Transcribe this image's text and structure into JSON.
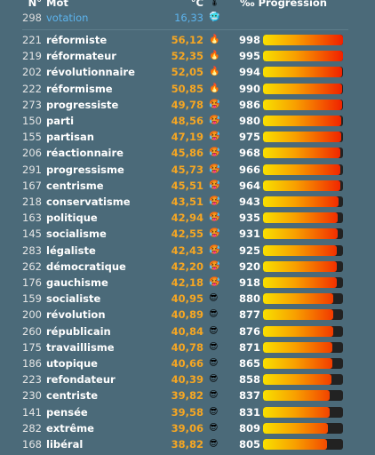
{
  "header": {
    "num": "N°",
    "word": "Mot",
    "temp": "°C",
    "temp_icon": "🌡",
    "progress": "‰ Progression"
  },
  "guess": {
    "num": "298",
    "word": "votation",
    "temp": "16,33",
    "icon": "🥶"
  },
  "rows": [
    [
      "221",
      "réformiste",
      "56,12",
      "🔥",
      998
    ],
    [
      "219",
      "réformateur",
      "52,35",
      "🔥",
      995
    ],
    [
      "202",
      "révolutionnaire",
      "52,05",
      "🔥",
      994
    ],
    [
      "222",
      "réformisme",
      "50,85",
      "🔥",
      990
    ],
    [
      "273",
      "progressiste",
      "49,78",
      "🥵",
      986
    ],
    [
      "150",
      "parti",
      "48,56",
      "🥵",
      980
    ],
    [
      "155",
      "partisan",
      "47,19",
      "🥵",
      975
    ],
    [
      "206",
      "réactionnaire",
      "45,86",
      "🥵",
      968
    ],
    [
      "291",
      "progressisme",
      "45,73",
      "🥵",
      966
    ],
    [
      "167",
      "centrisme",
      "45,51",
      "🥵",
      964
    ],
    [
      "218",
      "conservatisme",
      "43,51",
      "🥵",
      943
    ],
    [
      "163",
      "politique",
      "42,94",
      "🥵",
      935
    ],
    [
      "145",
      "socialisme",
      "42,55",
      "🥵",
      931
    ],
    [
      "283",
      "légaliste",
      "42,43",
      "🥵",
      925
    ],
    [
      "262",
      "démocratique",
      "42,20",
      "🥵",
      920
    ],
    [
      "176",
      "gauchisme",
      "42,18",
      "🥵",
      918
    ],
    [
      "159",
      "socialiste",
      "40,95",
      "😎",
      880
    ],
    [
      "200",
      "révolution",
      "40,89",
      "😎",
      877
    ],
    [
      "260",
      "républicain",
      "40,84",
      "😎",
      876
    ],
    [
      "175",
      "travaillisme",
      "40,78",
      "😎",
      871
    ],
    [
      "186",
      "utopique",
      "40,66",
      "😎",
      865
    ],
    [
      "223",
      "refondateur",
      "40,39",
      "😎",
      858
    ],
    [
      "230",
      "centriste",
      "39,82",
      "😎",
      837
    ],
    [
      "141",
      "pensée",
      "39,58",
      "😎",
      831
    ],
    [
      "282",
      "extrême",
      "39,06",
      "😎",
      809
    ],
    [
      "168",
      "libéral",
      "38,82",
      "😎",
      805
    ]
  ]
}
